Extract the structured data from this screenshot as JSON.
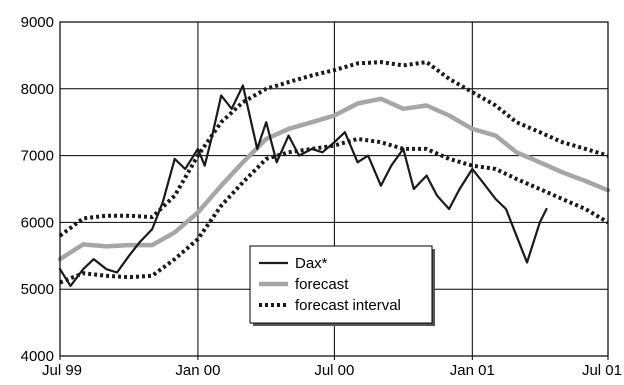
{
  "chart_data": {
    "type": "line",
    "title": "",
    "xlabel": "",
    "ylabel": "",
    "xlim": [
      "1999-07-01",
      "2001-07-01"
    ],
    "ylim": [
      4000,
      9000
    ],
    "grid": true,
    "legend_position": "center-bottom",
    "x_ticks": [
      {
        "date": "1999-07-01",
        "label": "Jul 99"
      },
      {
        "date": "2000-01-01",
        "label": "Jan 00"
      },
      {
        "date": "2000-07-01",
        "label": "Jul 00"
      },
      {
        "date": "2001-01-01",
        "label": "Jan 01"
      },
      {
        "date": "2001-07-01",
        "label": "Jul 01"
      }
    ],
    "y_ticks": [
      4000,
      5000,
      6000,
      7000,
      8000,
      9000
    ],
    "series": [
      {
        "name": "Dax*",
        "style": "solid",
        "color": "#1a1a1a",
        "x": [
          "1999-07-01",
          "1999-07-15",
          "1999-08-01",
          "1999-08-15",
          "1999-09-01",
          "1999-09-15",
          "1999-10-01",
          "1999-10-15",
          "1999-11-01",
          "1999-11-15",
          "1999-12-01",
          "1999-12-15",
          "2000-01-01",
          "2000-01-10",
          "2000-01-20",
          "2000-02-01",
          "2000-02-15",
          "2000-03-01",
          "2000-03-10",
          "2000-03-20",
          "2000-04-01",
          "2000-04-15",
          "2000-05-01",
          "2000-05-15",
          "2000-06-01",
          "2000-06-15",
          "2000-07-01",
          "2000-07-15",
          "2000-08-01",
          "2000-08-15",
          "2000-09-01",
          "2000-09-15",
          "2000-10-01",
          "2000-10-15",
          "2000-11-01",
          "2000-11-15",
          "2000-12-01",
          "2000-12-15",
          "2001-01-01",
          "2001-01-15",
          "2001-02-01",
          "2001-02-15",
          "2001-03-01",
          "2001-03-15",
          "2001-04-01",
          "2001-04-10"
        ],
        "values": [
          5300,
          5050,
          5300,
          5450,
          5300,
          5250,
          5500,
          5700,
          5900,
          6300,
          6950,
          6800,
          7100,
          6850,
          7300,
          7900,
          7700,
          8050,
          7600,
          7100,
          7500,
          6900,
          7300,
          7000,
          7100,
          7050,
          7200,
          7350,
          6900,
          7000,
          6550,
          6850,
          7100,
          6500,
          6700,
          6400,
          6200,
          6500,
          6800,
          6600,
          6350,
          6200,
          5800,
          5400,
          6000,
          6200
        ]
      },
      {
        "name": "forecast",
        "style": "solid-thick",
        "color": "#a6a6a6",
        "x": [
          "1999-07-01",
          "1999-08-01",
          "1999-09-01",
          "1999-10-01",
          "1999-11-01",
          "1999-12-01",
          "2000-01-01",
          "2000-02-01",
          "2000-03-01",
          "2000-04-01",
          "2000-05-01",
          "2000-06-01",
          "2000-07-01",
          "2000-08-01",
          "2000-09-01",
          "2000-10-01",
          "2000-11-01",
          "2000-12-01",
          "2001-01-01",
          "2001-02-01",
          "2001-03-01",
          "2001-04-01",
          "2001-05-01",
          "2001-06-01",
          "2001-07-01"
        ],
        "values": [
          5450,
          5670,
          5640,
          5660,
          5660,
          5850,
          6150,
          6550,
          6900,
          7250,
          7400,
          7500,
          7600,
          7780,
          7850,
          7700,
          7750,
          7600,
          7400,
          7300,
          7050,
          6900,
          6750,
          6620,
          6480
        ]
      },
      {
        "name": "forecast interval",
        "style": "dotted-thick",
        "color": "#1a1a1a",
        "x": [
          "1999-07-01",
          "1999-08-01",
          "1999-09-01",
          "1999-10-01",
          "1999-11-01",
          "1999-12-01",
          "2000-01-01",
          "2000-02-01",
          "2000-03-01",
          "2000-04-01",
          "2000-05-01",
          "2000-06-01",
          "2000-07-01",
          "2000-08-01",
          "2000-09-01",
          "2000-10-01",
          "2000-11-01",
          "2000-12-01",
          "2001-01-01",
          "2001-02-01",
          "2001-03-01",
          "2001-04-01",
          "2001-05-01",
          "2001-06-01",
          "2001-07-01"
        ],
        "values": [
          5800,
          6060,
          6100,
          6100,
          6080,
          6400,
          7000,
          7500,
          7800,
          8000,
          8100,
          8200,
          8280,
          8380,
          8400,
          8350,
          8400,
          8150,
          7950,
          7750,
          7500,
          7350,
          7200,
          7100,
          7000
        ]
      },
      {
        "name": "forecast interval lower",
        "style": "dotted-thick",
        "color": "#1a1a1a",
        "legend": false,
        "x": [
          "1999-07-01",
          "1999-08-01",
          "1999-09-01",
          "1999-10-01",
          "1999-11-01",
          "1999-12-01",
          "2000-01-01",
          "2000-02-01",
          "2000-03-01",
          "2000-04-01",
          "2000-05-01",
          "2000-06-01",
          "2000-07-01",
          "2000-08-01",
          "2000-09-01",
          "2000-10-01",
          "2000-11-01",
          "2000-12-01",
          "2001-01-01",
          "2001-02-01",
          "2001-03-01",
          "2001-04-01",
          "2001-05-01",
          "2001-06-01",
          "2001-07-01"
        ],
        "values": [
          5100,
          5240,
          5200,
          5180,
          5200,
          5450,
          5750,
          6250,
          6600,
          6950,
          7050,
          7100,
          7150,
          7250,
          7200,
          7100,
          7100,
          6950,
          6850,
          6800,
          6650,
          6500,
          6350,
          6200,
          6000
        ]
      }
    ]
  }
}
